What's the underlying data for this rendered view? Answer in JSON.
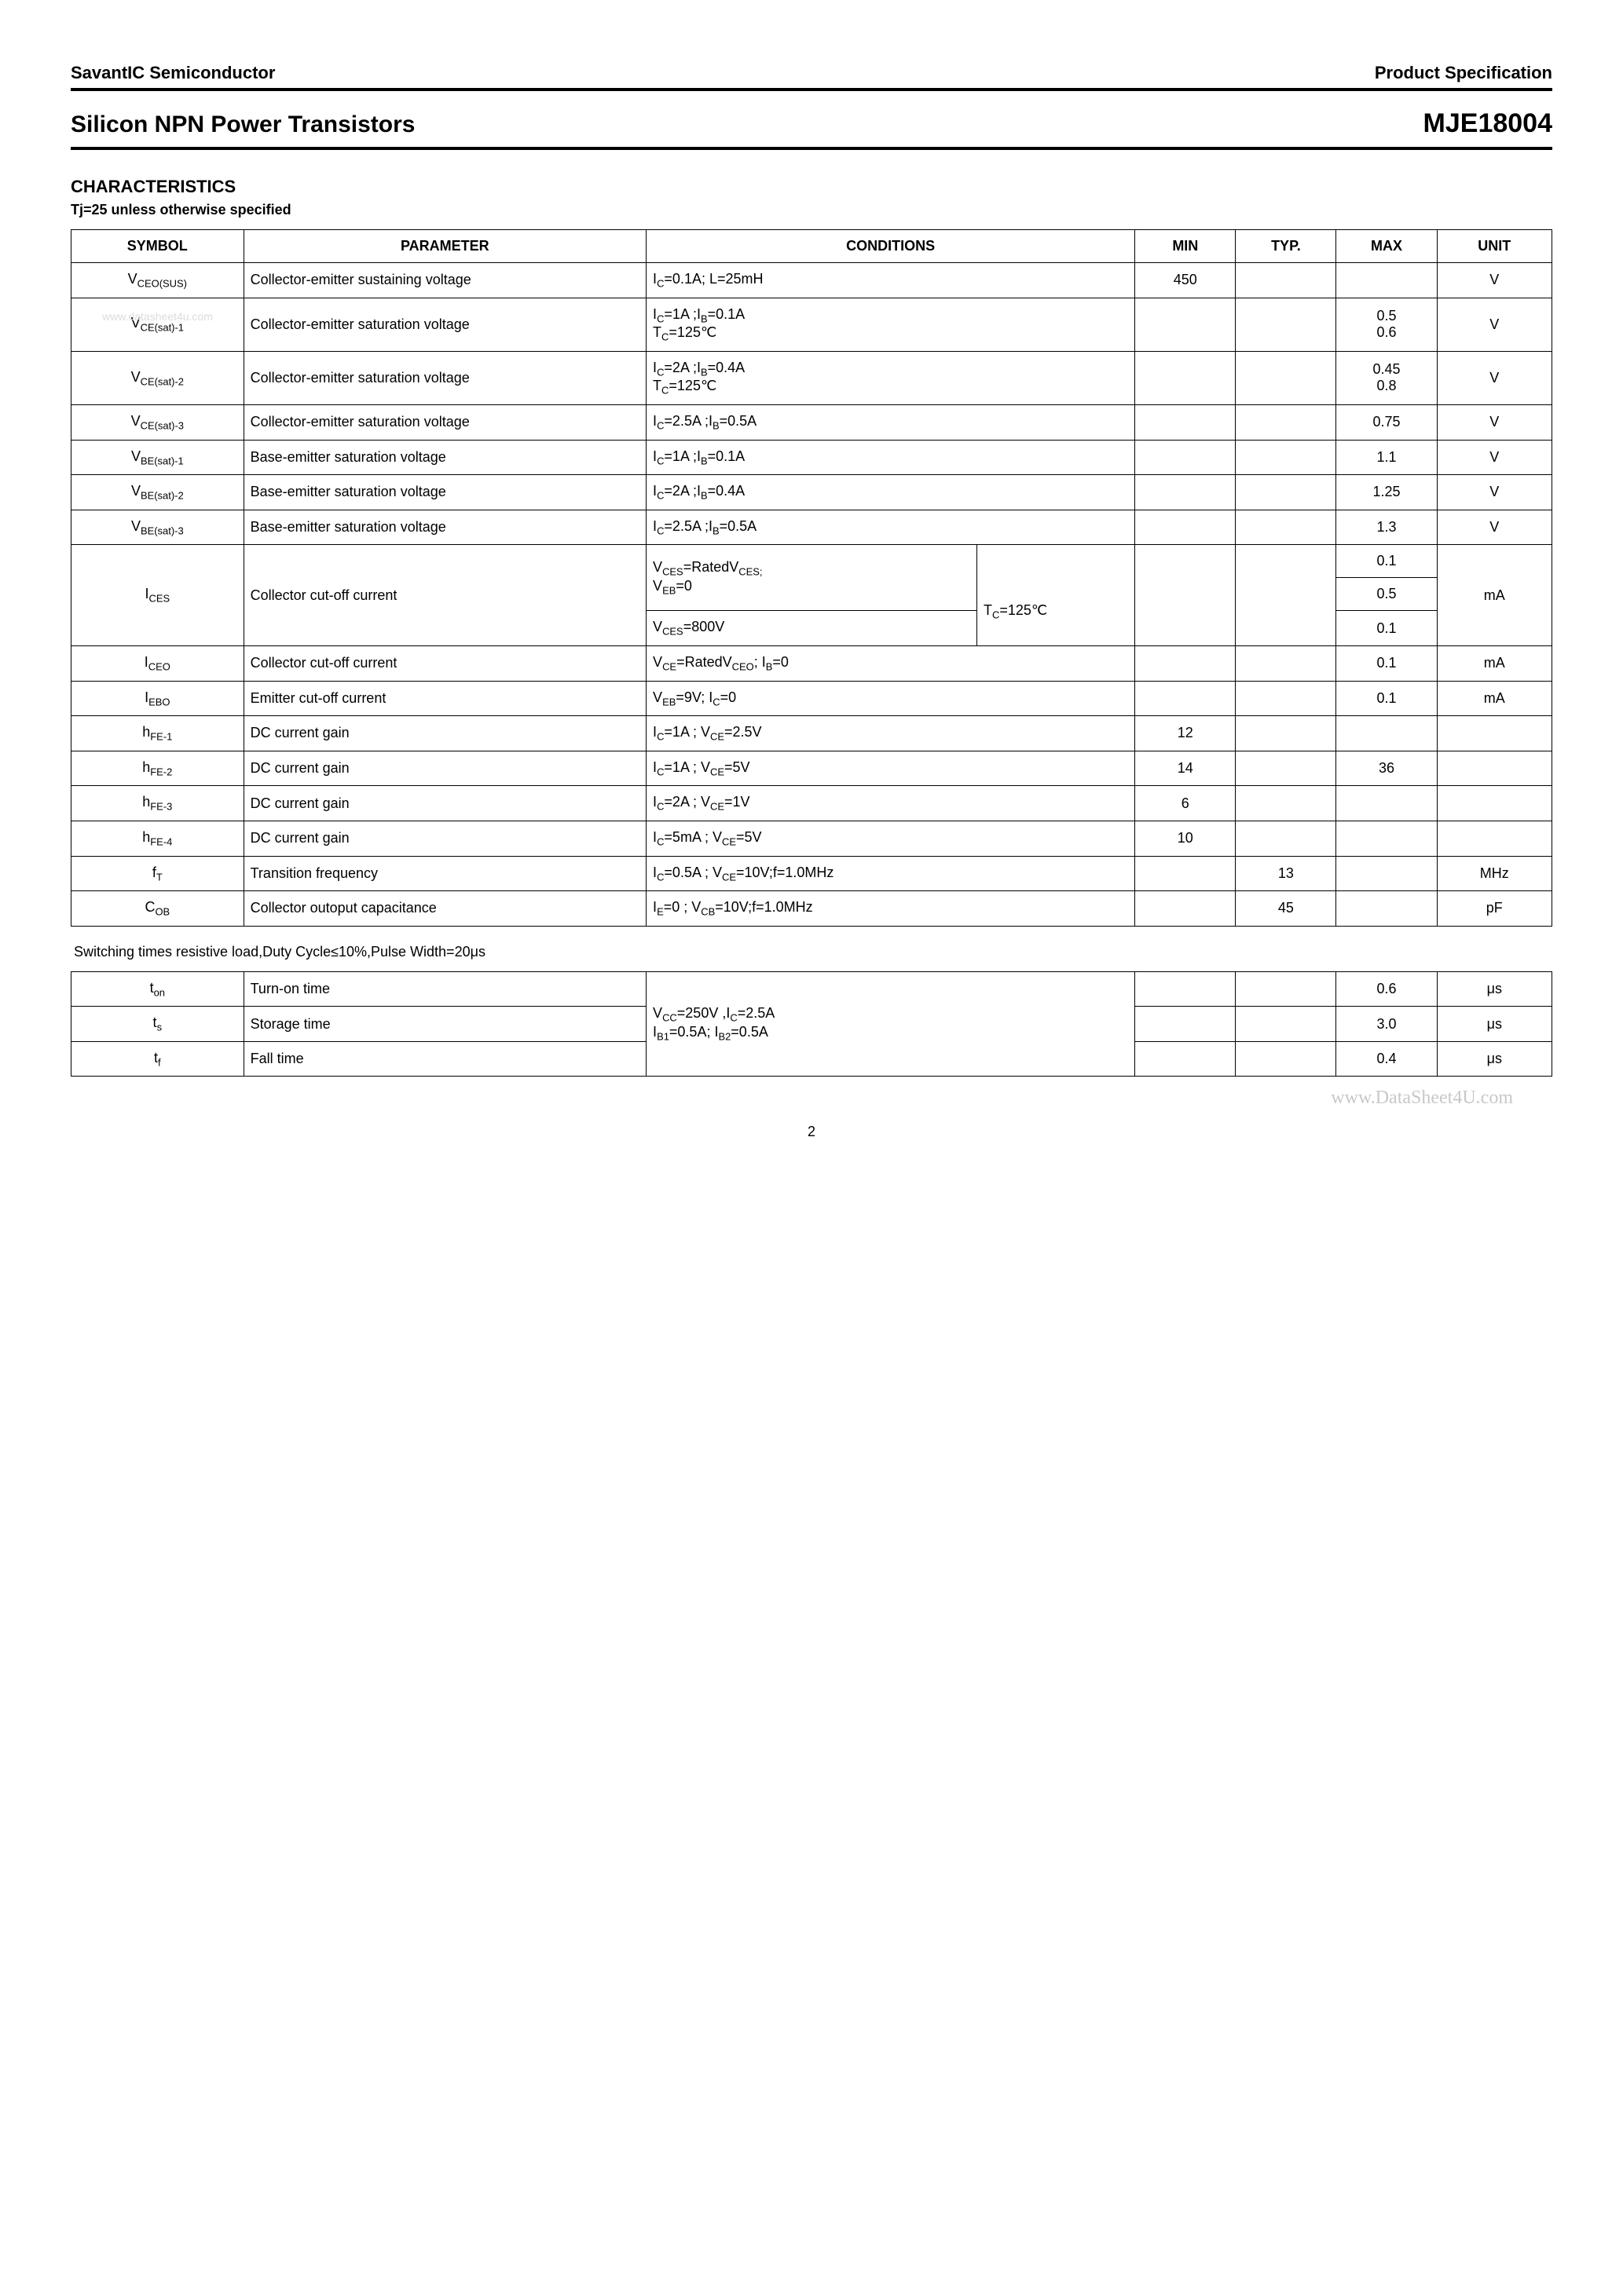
{
  "header": {
    "company": "SavantIC Semiconductor",
    "spec_label": "Product Specification",
    "title": "Silicon NPN Power Transistors",
    "part_number": "MJE18004"
  },
  "section": {
    "title": "CHARACTERISTICS",
    "subtitle": "Tj=25    unless otherwise specified"
  },
  "watermark_top": "www.datasheet4u.com",
  "watermark_bottom": "www.DataSheet4U.com",
  "page_number": "2",
  "table_headers": {
    "symbol": "SYMBOL",
    "parameter": "PARAMETER",
    "conditions": "CONDITIONS",
    "min": "MIN",
    "typ": "TYP.",
    "max": "MAX",
    "unit": "UNIT"
  },
  "rows": [
    {
      "sym_html": "V<sub>CEO(SUS)</sub>",
      "param": "Collector-emitter sustaining voltage",
      "cond_html": "I<sub>C</sub>=0.1A; L=25mH",
      "min": "450",
      "typ": "",
      "max": "",
      "unit": "V"
    },
    {
      "sym_html": "V<sub>CE(sat)-1</sub>",
      "param": "Collector-emitter saturation voltage",
      "cond_html": "I<sub>C</sub>=1A ;I<sub>B</sub>=0.1A<br>T<sub>C</sub>=125℃",
      "min": "",
      "typ": "",
      "max": "0.5<br>0.6",
      "unit": "V"
    },
    {
      "sym_html": "V<sub>CE(sat)-2</sub>",
      "param": "Collector-emitter saturation voltage",
      "cond_html": "I<sub>C</sub>=2A ;I<sub>B</sub>=0.4A<br>T<sub>C</sub>=125℃",
      "min": "",
      "typ": "",
      "max": "0.45<br>0.8",
      "unit": "V"
    },
    {
      "sym_html": "V<sub>CE(sat)-3</sub>",
      "param": "Collector-emitter saturation voltage",
      "cond_html": "I<sub>C</sub>=2.5A ;I<sub>B</sub>=0.5A",
      "min": "",
      "typ": "",
      "max": "0.75",
      "unit": "V"
    },
    {
      "sym_html": "V<sub>BE(sat)-1</sub>",
      "param": "Base-emitter saturation voltage",
      "cond_html": "I<sub>C</sub>=1A ;I<sub>B</sub>=0.1A",
      "min": "",
      "typ": "",
      "max": "1.1",
      "unit": "V"
    },
    {
      "sym_html": "V<sub>BE(sat)-2</sub>",
      "param": "Base-emitter saturation voltage",
      "cond_html": "I<sub>C</sub>=2A ;I<sub>B</sub>=0.4A",
      "min": "",
      "typ": "",
      "max": "1.25",
      "unit": "V"
    },
    {
      "sym_html": "V<sub>BE(sat)-3</sub>",
      "param": "Base-emitter saturation voltage",
      "cond_html": "I<sub>C</sub>=2.5A ;I<sub>B</sub>=0.5A",
      "min": "",
      "typ": "",
      "max": "1.3",
      "unit": "V"
    }
  ],
  "ices": {
    "sym_html": "I<sub>CES</sub>",
    "param": "Collector cut-off current",
    "cond_a_html": "V<sub>CES</sub>=RatedV<sub>CES;</sub><br>V<sub>EB</sub>=0",
    "cond_sub_html": "T<sub>C</sub>=125℃",
    "cond_b_html": "V<sub>CES</sub>=800V",
    "max_a": "0.1",
    "max_b": "0.5",
    "max_c": "0.1",
    "unit": "mA"
  },
  "rows2": [
    {
      "sym_html": "I<sub>CEO</sub>",
      "param": "Collector cut-off current",
      "cond_html": "V<sub>CE</sub>=RatedV<sub>CEO</sub>; I<sub>B</sub>=0",
      "min": "",
      "typ": "",
      "max": "0.1",
      "unit": "mA"
    },
    {
      "sym_html": "I<sub>EBO</sub>",
      "param": "Emitter cut-off current",
      "cond_html": "V<sub>EB</sub>=9V; I<sub>C</sub>=0",
      "min": "",
      "typ": "",
      "max": "0.1",
      "unit": "mA"
    },
    {
      "sym_html": "h<sub>FE-1</sub>",
      "param": "DC current gain",
      "cond_html": "I<sub>C</sub>=1A ; V<sub>CE</sub>=2.5V",
      "min": "12",
      "typ": "",
      "max": "",
      "unit": ""
    },
    {
      "sym_html": "h<sub>FE-2</sub>",
      "param": "DC current gain",
      "cond_html": "I<sub>C</sub>=1A ; V<sub>CE</sub>=5V",
      "min": "14",
      "typ": "",
      "max": "36",
      "unit": ""
    },
    {
      "sym_html": "h<sub>FE-3</sub>",
      "param": "DC current gain",
      "cond_html": "I<sub>C</sub>=2A ; V<sub>CE</sub>=1V",
      "min": "6",
      "typ": "",
      "max": "",
      "unit": ""
    },
    {
      "sym_html": "h<sub>FE-4</sub>",
      "param": "DC current gain",
      "cond_html": "I<sub>C</sub>=5mA ; V<sub>CE</sub>=5V",
      "min": "10",
      "typ": "",
      "max": "",
      "unit": ""
    },
    {
      "sym_html": "f<sub>T</sub>",
      "param": "Transition frequency",
      "cond_html": "I<sub>C</sub>=0.5A ; V<sub>CE</sub>=10V;f=1.0MHz",
      "min": "",
      "typ": "13",
      "max": "",
      "unit": "MHz"
    },
    {
      "sym_html": "C<sub>OB</sub>",
      "param": "Collector outoput capacitance",
      "cond_html": "I<sub>E</sub>=0 ; V<sub>CB</sub>=10V;f=1.0MHz",
      "min": "",
      "typ": "45",
      "max": "",
      "unit": "pF"
    }
  ],
  "switching_note": "Switching times resistive load,Duty Cycle≤10%,Pulse Width=20μs",
  "switching": {
    "cond_html": "V<sub>CC</sub>=250V ,I<sub>C</sub>=2.5A<br>I<sub>B1</sub>=0.5A; I<sub>B2</sub>=0.5A",
    "rows": [
      {
        "sym_html": "t<sub>on</sub>",
        "param": "Turn-on time",
        "max": "0.6",
        "unit": "μs"
      },
      {
        "sym_html": "t<sub>s</sub>",
        "param": "Storage time",
        "max": "3.0",
        "unit": "μs"
      },
      {
        "sym_html": "t<sub>f</sub>",
        "param": "Fall time",
        "max": "0.4",
        "unit": "μs"
      }
    ]
  }
}
